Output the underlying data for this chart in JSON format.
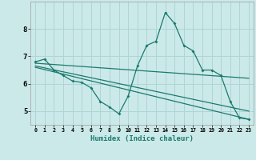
{
  "xlabel": "Humidex (Indice chaleur)",
  "background_color": "#cce9e9",
  "grid_color": "#aed4d4",
  "line_color": "#1a7a6e",
  "x_values": [
    0,
    1,
    2,
    3,
    4,
    5,
    6,
    7,
    8,
    9,
    10,
    11,
    12,
    13,
    14,
    15,
    16,
    17,
    18,
    19,
    20,
    21,
    22,
    23
  ],
  "series1": [
    6.8,
    6.9,
    6.5,
    6.3,
    6.1,
    6.05,
    5.85,
    5.35,
    5.15,
    4.9,
    5.55,
    6.65,
    7.4,
    7.55,
    8.6,
    8.2,
    7.4,
    7.2,
    6.5,
    6.5,
    6.3,
    5.35,
    4.75,
    4.7
  ],
  "trend1_x": [
    0,
    23
  ],
  "trend1_y": [
    6.75,
    6.2
  ],
  "trend2_x": [
    0,
    23
  ],
  "trend2_y": [
    6.6,
    4.7
  ],
  "trend3_x": [
    0,
    23
  ],
  "trend3_y": [
    6.65,
    5.0
  ],
  "ylim": [
    4.5,
    9.0
  ],
  "xlim": [
    -0.5,
    23.5
  ],
  "yticks": [
    5,
    6,
    7,
    8
  ],
  "xticks": [
    0,
    1,
    2,
    3,
    4,
    5,
    6,
    7,
    8,
    9,
    10,
    11,
    12,
    13,
    14,
    15,
    16,
    17,
    18,
    19,
    20,
    21,
    22,
    23
  ]
}
